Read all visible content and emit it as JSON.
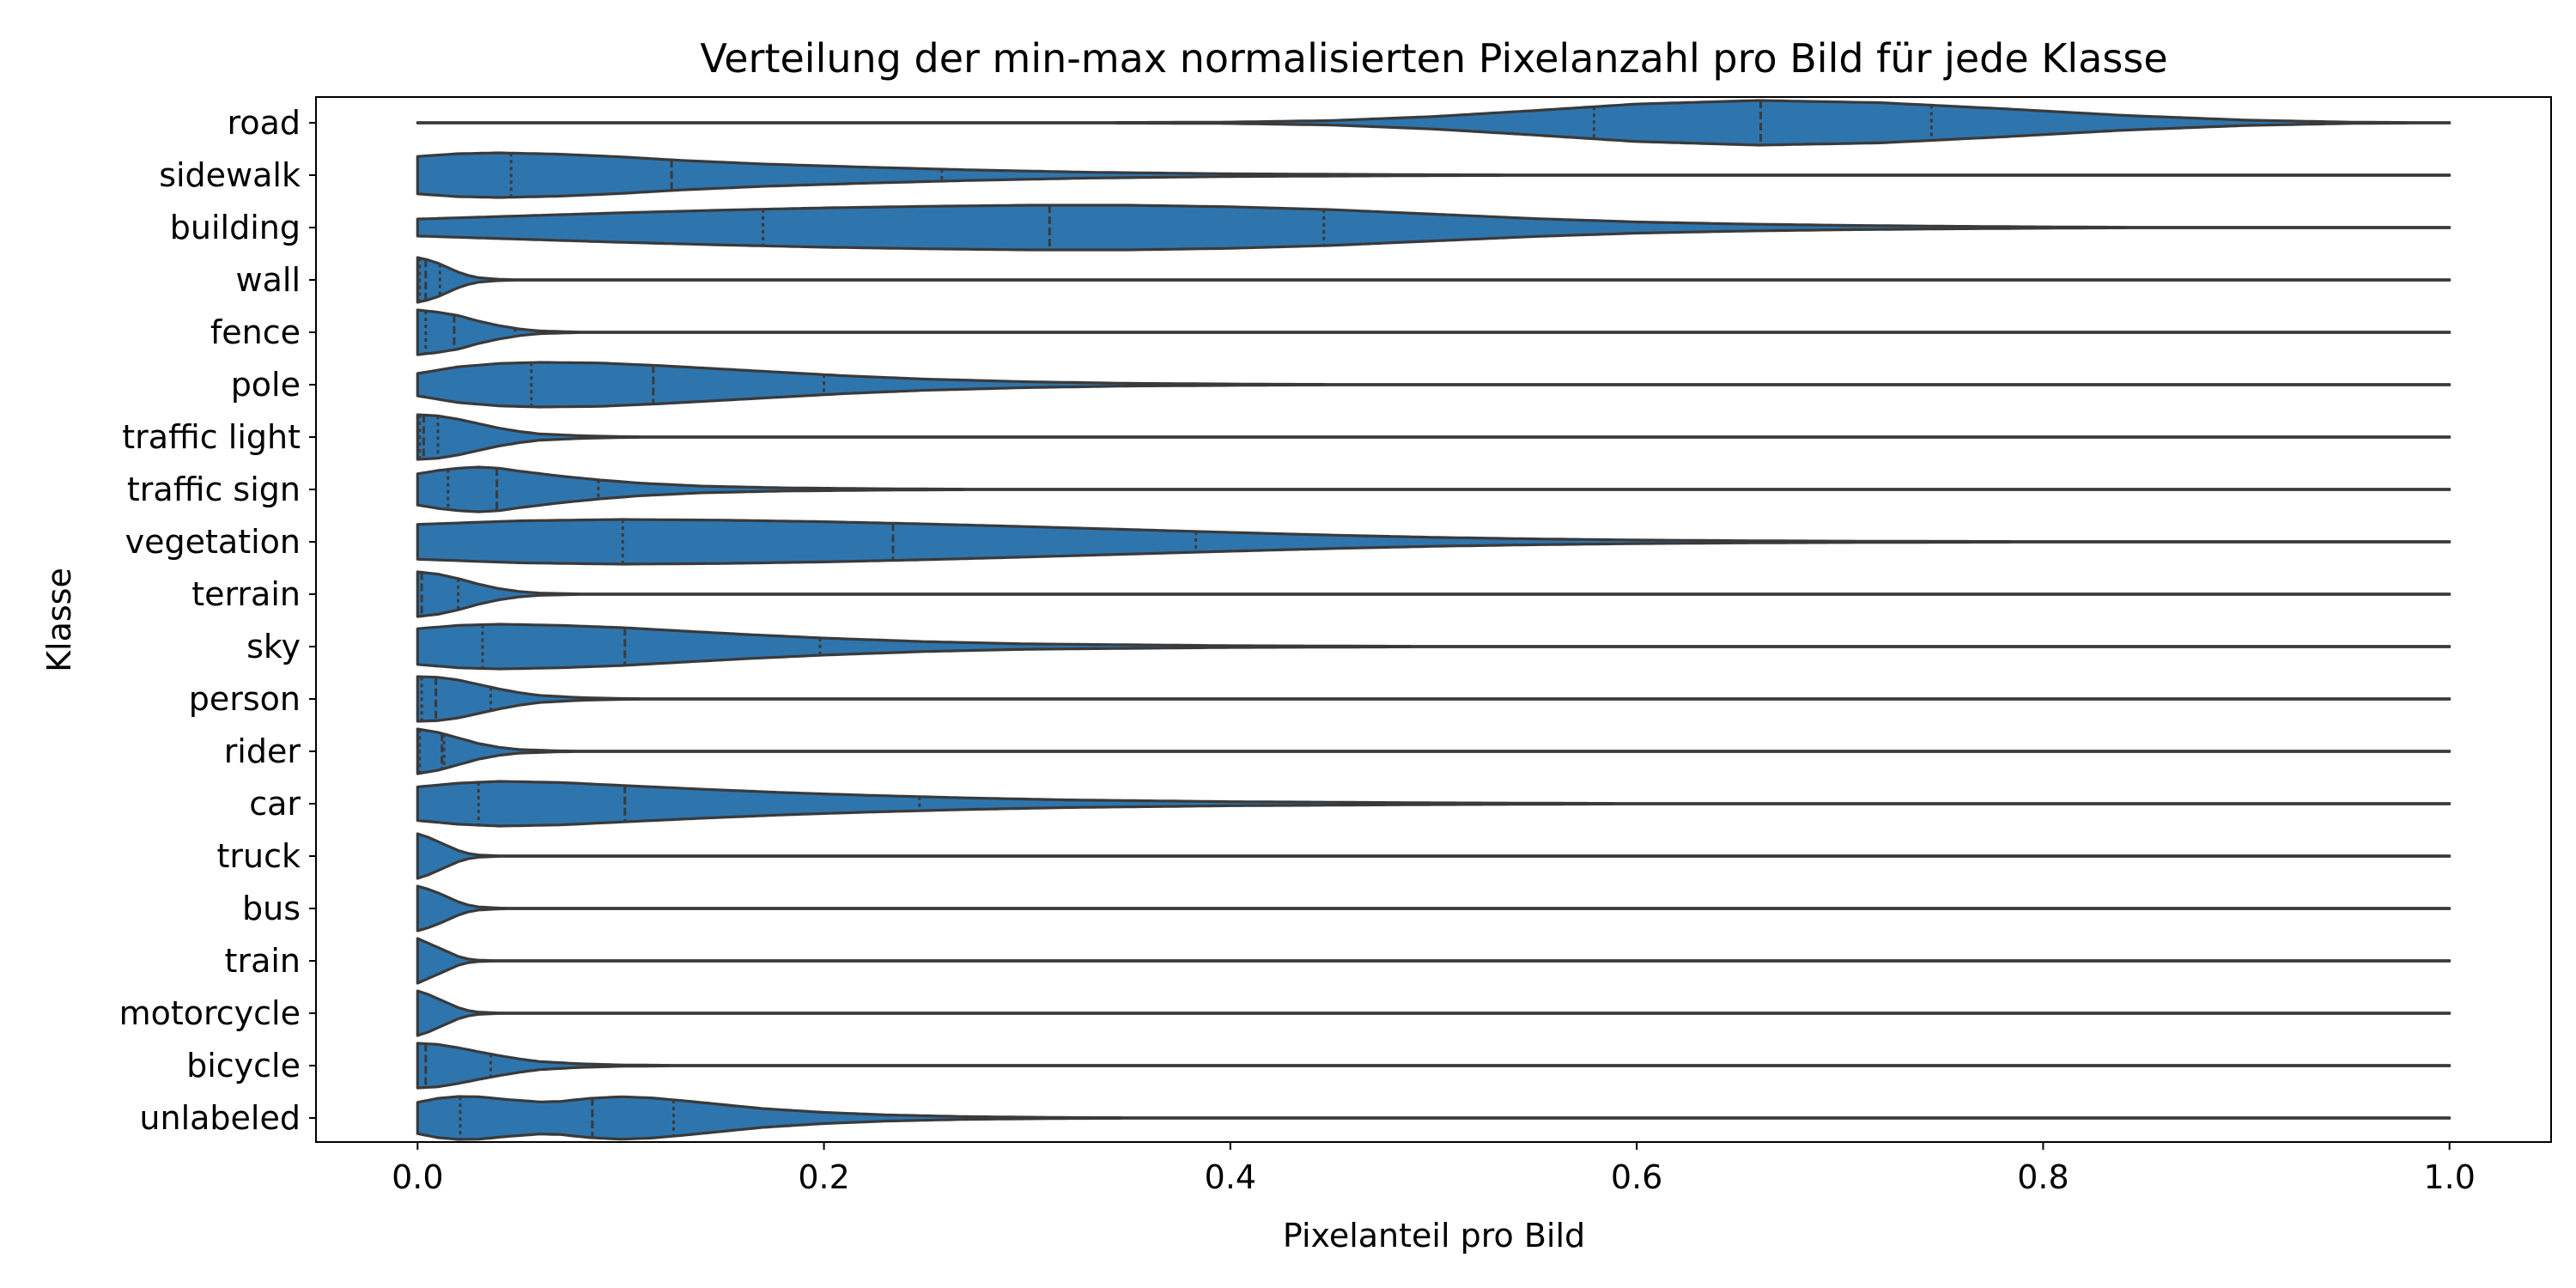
{
  "chart_data": {
    "type": "violin",
    "orientation": "horizontal",
    "title": "Verteilung der min-max normalisierten Pixelanzahl pro Bild für jede Klasse",
    "xlabel": "Pixelanteil pro Bild",
    "ylabel": "Klasse",
    "xlim": [
      -0.05,
      1.05
    ],
    "xticks": [
      0.0,
      0.2,
      0.4,
      0.6,
      0.8,
      1.0
    ],
    "xtick_labels": [
      "0.0",
      "0.2",
      "0.4",
      "0.6",
      "0.8",
      "1.0"
    ],
    "grid": false,
    "inner": "quartile",
    "color": "#2e75ae",
    "line_color": "#3a3a3a",
    "categories": [
      "road",
      "sidewalk",
      "building",
      "wall",
      "fence",
      "pole",
      "traffic light",
      "traffic sign",
      "vegetation",
      "terrain",
      "sky",
      "person",
      "rider",
      "car",
      "truck",
      "bus",
      "train",
      "motorcycle",
      "bicycle",
      "unlabeled"
    ],
    "quartiles": [
      [
        0.579,
        0.661,
        0.745
      ],
      [
        0.046,
        0.125,
        0.258
      ],
      [
        0.17,
        0.311,
        0.446
      ],
      [
        0.001,
        0.004,
        0.011
      ],
      [
        0.004,
        0.018,
        0.048
      ],
      [
        0.056,
        0.116,
        0.2
      ],
      [
        0.001,
        0.003,
        0.01
      ],
      [
        0.015,
        0.039,
        0.089
      ],
      [
        0.101,
        0.234,
        0.383
      ],
      [
        0.0,
        0.002,
        0.02
      ],
      [
        0.032,
        0.102,
        0.198
      ],
      [
        0.002,
        0.009,
        0.036
      ],
      [
        0.001,
        0.012,
        0.013
      ],
      [
        0.03,
        0.102,
        0.247
      ],
      [
        0.0,
        0.0,
        0.0
      ],
      [
        0.0,
        0.0,
        0.0
      ],
      [
        0.0,
        0.0,
        0.0
      ],
      [
        0.0,
        0.0,
        0.0
      ],
      [
        0.0,
        0.004,
        0.036
      ],
      [
        0.021,
        0.086,
        0.126
      ]
    ],
    "density_profiles": [
      [
        [
          0.0,
          0.0
        ],
        [
          0.3,
          0.0
        ],
        [
          0.4,
          0.03
        ],
        [
          0.45,
          0.1
        ],
        [
          0.5,
          0.28
        ],
        [
          0.55,
          0.55
        ],
        [
          0.6,
          0.84
        ],
        [
          0.66,
          1.0
        ],
        [
          0.72,
          0.9
        ],
        [
          0.78,
          0.63
        ],
        [
          0.84,
          0.33
        ],
        [
          0.9,
          0.12
        ],
        [
          0.95,
          0.03
        ],
        [
          1.0,
          0.0
        ]
      ],
      [
        [
          0.0,
          0.84
        ],
        [
          0.02,
          0.96
        ],
        [
          0.04,
          1.0
        ],
        [
          0.07,
          0.94
        ],
        [
          0.1,
          0.82
        ],
        [
          0.13,
          0.66
        ],
        [
          0.17,
          0.5
        ],
        [
          0.22,
          0.36
        ],
        [
          0.27,
          0.24
        ],
        [
          0.33,
          0.13
        ],
        [
          0.4,
          0.06
        ],
        [
          0.5,
          0.02
        ],
        [
          0.6,
          0.0
        ],
        [
          1.0,
          0.0
        ]
      ],
      [
        [
          0.0,
          0.38
        ],
        [
          0.05,
          0.52
        ],
        [
          0.1,
          0.66
        ],
        [
          0.15,
          0.78
        ],
        [
          0.2,
          0.88
        ],
        [
          0.25,
          0.95
        ],
        [
          0.3,
          1.0
        ],
        [
          0.35,
          1.0
        ],
        [
          0.4,
          0.93
        ],
        [
          0.45,
          0.8
        ],
        [
          0.5,
          0.6
        ],
        [
          0.55,
          0.4
        ],
        [
          0.6,
          0.25
        ],
        [
          0.65,
          0.16
        ],
        [
          0.7,
          0.1
        ],
        [
          0.75,
          0.06
        ],
        [
          0.8,
          0.03
        ],
        [
          0.85,
          0.01
        ],
        [
          0.9,
          0.0
        ],
        [
          1.0,
          0.0
        ]
      ],
      [
        [
          0.0,
          1.0
        ],
        [
          0.005,
          0.9
        ],
        [
          0.01,
          0.75
        ],
        [
          0.015,
          0.55
        ],
        [
          0.02,
          0.35
        ],
        [
          0.025,
          0.2
        ],
        [
          0.03,
          0.1
        ],
        [
          0.04,
          0.03
        ],
        [
          0.05,
          0.0
        ],
        [
          1.0,
          0.0
        ]
      ],
      [
        [
          0.0,
          1.0
        ],
        [
          0.01,
          0.9
        ],
        [
          0.02,
          0.75
        ],
        [
          0.03,
          0.5
        ],
        [
          0.04,
          0.3
        ],
        [
          0.05,
          0.15
        ],
        [
          0.06,
          0.06
        ],
        [
          0.08,
          0.01
        ],
        [
          0.1,
          0.0
        ],
        [
          1.0,
          0.0
        ]
      ],
      [
        [
          0.0,
          0.5
        ],
        [
          0.02,
          0.8
        ],
        [
          0.04,
          0.95
        ],
        [
          0.06,
          1.0
        ],
        [
          0.09,
          0.97
        ],
        [
          0.12,
          0.85
        ],
        [
          0.15,
          0.7
        ],
        [
          0.18,
          0.55
        ],
        [
          0.21,
          0.4
        ],
        [
          0.25,
          0.25
        ],
        [
          0.3,
          0.13
        ],
        [
          0.35,
          0.06
        ],
        [
          0.42,
          0.02
        ],
        [
          0.5,
          0.0
        ],
        [
          1.0,
          0.0
        ]
      ],
      [
        [
          0.0,
          1.0
        ],
        [
          0.01,
          0.95
        ],
        [
          0.02,
          0.8
        ],
        [
          0.03,
          0.6
        ],
        [
          0.04,
          0.4
        ],
        [
          0.05,
          0.25
        ],
        [
          0.06,
          0.14
        ],
        [
          0.08,
          0.06
        ],
        [
          0.1,
          0.02
        ],
        [
          0.13,
          0.0
        ],
        [
          1.0,
          0.0
        ]
      ],
      [
        [
          0.0,
          0.7
        ],
        [
          0.01,
          0.85
        ],
        [
          0.02,
          0.95
        ],
        [
          0.03,
          1.0
        ],
        [
          0.04,
          0.95
        ],
        [
          0.05,
          0.82
        ],
        [
          0.07,
          0.6
        ],
        [
          0.09,
          0.42
        ],
        [
          0.11,
          0.28
        ],
        [
          0.14,
          0.15
        ],
        [
          0.18,
          0.07
        ],
        [
          0.23,
          0.03
        ],
        [
          0.3,
          0.0
        ],
        [
          1.0,
          0.0
        ]
      ],
      [
        [
          0.0,
          0.78
        ],
        [
          0.05,
          0.94
        ],
        [
          0.1,
          1.0
        ],
        [
          0.15,
          0.97
        ],
        [
          0.2,
          0.9
        ],
        [
          0.25,
          0.8
        ],
        [
          0.3,
          0.68
        ],
        [
          0.35,
          0.55
        ],
        [
          0.4,
          0.42
        ],
        [
          0.45,
          0.3
        ],
        [
          0.5,
          0.2
        ],
        [
          0.55,
          0.13
        ],
        [
          0.6,
          0.08
        ],
        [
          0.65,
          0.05
        ],
        [
          0.7,
          0.03
        ],
        [
          0.8,
          0.01
        ],
        [
          0.9,
          0.0
        ],
        [
          1.0,
          0.0
        ]
      ],
      [
        [
          0.0,
          1.0
        ],
        [
          0.01,
          0.9
        ],
        [
          0.02,
          0.7
        ],
        [
          0.03,
          0.45
        ],
        [
          0.04,
          0.25
        ],
        [
          0.05,
          0.12
        ],
        [
          0.06,
          0.05
        ],
        [
          0.08,
          0.01
        ],
        [
          0.1,
          0.0
        ],
        [
          1.0,
          0.0
        ]
      ],
      [
        [
          0.0,
          0.8
        ],
        [
          0.02,
          0.95
        ],
        [
          0.04,
          1.0
        ],
        [
          0.07,
          0.95
        ],
        [
          0.1,
          0.85
        ],
        [
          0.13,
          0.7
        ],
        [
          0.16,
          0.55
        ],
        [
          0.2,
          0.38
        ],
        [
          0.25,
          0.22
        ],
        [
          0.3,
          0.12
        ],
        [
          0.4,
          0.04
        ],
        [
          0.5,
          0.01
        ],
        [
          0.6,
          0.0
        ],
        [
          1.0,
          0.0
        ]
      ],
      [
        [
          0.0,
          1.0
        ],
        [
          0.01,
          0.97
        ],
        [
          0.02,
          0.85
        ],
        [
          0.03,
          0.65
        ],
        [
          0.04,
          0.45
        ],
        [
          0.05,
          0.28
        ],
        [
          0.06,
          0.16
        ],
        [
          0.08,
          0.06
        ],
        [
          0.1,
          0.02
        ],
        [
          0.13,
          0.0
        ],
        [
          1.0,
          0.0
        ]
      ],
      [
        [
          0.0,
          1.0
        ],
        [
          0.01,
          0.85
        ],
        [
          0.02,
          0.6
        ],
        [
          0.03,
          0.35
        ],
        [
          0.04,
          0.18
        ],
        [
          0.05,
          0.08
        ],
        [
          0.07,
          0.02
        ],
        [
          0.09,
          0.0
        ],
        [
          1.0,
          0.0
        ]
      ],
      [
        [
          0.0,
          0.75
        ],
        [
          0.02,
          0.92
        ],
        [
          0.04,
          1.0
        ],
        [
          0.07,
          0.95
        ],
        [
          0.1,
          0.82
        ],
        [
          0.14,
          0.65
        ],
        [
          0.18,
          0.5
        ],
        [
          0.22,
          0.38
        ],
        [
          0.27,
          0.26
        ],
        [
          0.32,
          0.17
        ],
        [
          0.4,
          0.09
        ],
        [
          0.5,
          0.04
        ],
        [
          0.6,
          0.01
        ],
        [
          0.7,
          0.0
        ],
        [
          1.0,
          0.0
        ]
      ],
      [
        [
          0.0,
          1.0
        ],
        [
          0.005,
          0.85
        ],
        [
          0.01,
          0.65
        ],
        [
          0.015,
          0.45
        ],
        [
          0.02,
          0.25
        ],
        [
          0.025,
          0.12
        ],
        [
          0.03,
          0.05
        ],
        [
          0.04,
          0.01
        ],
        [
          0.05,
          0.0
        ],
        [
          1.0,
          0.0
        ]
      ],
      [
        [
          0.0,
          1.0
        ],
        [
          0.005,
          0.87
        ],
        [
          0.01,
          0.7
        ],
        [
          0.015,
          0.5
        ],
        [
          0.02,
          0.3
        ],
        [
          0.025,
          0.15
        ],
        [
          0.03,
          0.07
        ],
        [
          0.04,
          0.02
        ],
        [
          0.05,
          0.0
        ],
        [
          1.0,
          0.0
        ]
      ],
      [
        [
          0.0,
          1.0
        ],
        [
          0.005,
          0.8
        ],
        [
          0.01,
          0.6
        ],
        [
          0.015,
          0.4
        ],
        [
          0.02,
          0.2
        ],
        [
          0.025,
          0.08
        ],
        [
          0.03,
          0.03
        ],
        [
          0.04,
          0.0
        ],
        [
          1.0,
          0.0
        ]
      ],
      [
        [
          0.0,
          1.0
        ],
        [
          0.005,
          0.85
        ],
        [
          0.01,
          0.65
        ],
        [
          0.015,
          0.45
        ],
        [
          0.02,
          0.25
        ],
        [
          0.025,
          0.12
        ],
        [
          0.03,
          0.05
        ],
        [
          0.04,
          0.01
        ],
        [
          0.05,
          0.0
        ],
        [
          1.0,
          0.0
        ]
      ],
      [
        [
          0.0,
          1.0
        ],
        [
          0.01,
          0.95
        ],
        [
          0.02,
          0.8
        ],
        [
          0.03,
          0.62
        ],
        [
          0.04,
          0.45
        ],
        [
          0.05,
          0.3
        ],
        [
          0.06,
          0.18
        ],
        [
          0.08,
          0.08
        ],
        [
          0.1,
          0.03
        ],
        [
          0.13,
          0.01
        ],
        [
          0.16,
          0.0
        ],
        [
          1.0,
          0.0
        ]
      ],
      [
        [
          0.0,
          0.7
        ],
        [
          0.01,
          0.88
        ],
        [
          0.02,
          0.96
        ],
        [
          0.03,
          0.95
        ],
        [
          0.045,
          0.82
        ],
        [
          0.06,
          0.72
        ],
        [
          0.07,
          0.74
        ],
        [
          0.085,
          0.88
        ],
        [
          0.1,
          0.95
        ],
        [
          0.115,
          0.9
        ],
        [
          0.13,
          0.78
        ],
        [
          0.15,
          0.6
        ],
        [
          0.17,
          0.42
        ],
        [
          0.2,
          0.25
        ],
        [
          0.23,
          0.14
        ],
        [
          0.27,
          0.06
        ],
        [
          0.32,
          0.02
        ],
        [
          0.4,
          0.0
        ],
        [
          1.0,
          0.0
        ]
      ]
    ]
  }
}
